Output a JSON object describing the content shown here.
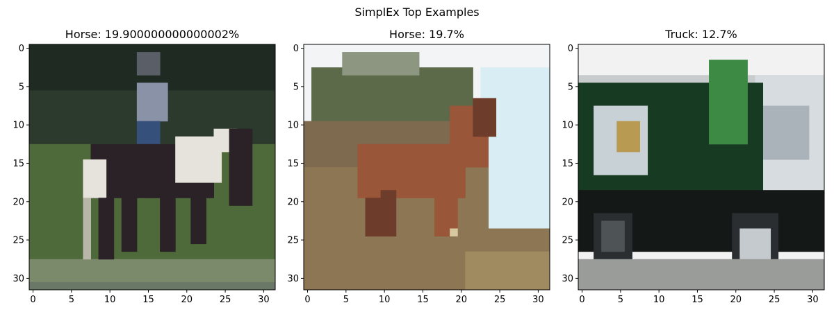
{
  "figure": {
    "suptitle": "SimplEx Top Examples"
  },
  "chart_data": [
    {
      "type": "image",
      "title": "Horse: 19.900000000000002%",
      "xlim": [
        -0.5,
        31.5
      ],
      "ylim": [
        31.5,
        -0.5
      ],
      "xticks": [
        0,
        5,
        10,
        15,
        20,
        25,
        30
      ],
      "yticks": [
        0,
        5,
        10,
        15,
        20,
        25,
        30
      ],
      "colors": {
        "sky": "#1e2a22",
        "background": "#2b3a2c",
        "ground": "#4f6a3a",
        "ground_band": "#7a8a6a",
        "horse": "#2a2226",
        "horse_patch": "#e6e2dc",
        "rider": "#8a92a8",
        "rider_pants": "#35507a",
        "bottom_band": "#6a7868"
      }
    },
    {
      "type": "image",
      "title": "Horse: 19.7%",
      "xlim": [
        -0.5,
        31.5
      ],
      "ylim": [
        31.5,
        -0.5
      ],
      "xticks": [
        0,
        5,
        10,
        15,
        20,
        25,
        30
      ],
      "yticks": [
        0,
        5,
        10,
        15,
        20,
        25,
        30
      ],
      "colors": {
        "sky": "#f2f4f6",
        "water": "#d8eef4",
        "trees": "#5c6a4a",
        "hill": "#7e6a4e",
        "ground": "#8c7654",
        "horse": "#9a5638",
        "horse_dark": "#6e3c2a"
      }
    },
    {
      "type": "image",
      "title": "Truck: 12.7%",
      "xlim": [
        -0.5,
        31.5
      ],
      "ylim": [
        31.5,
        -0.5
      ],
      "xticks": [
        0,
        5,
        10,
        15,
        20,
        25,
        30
      ],
      "yticks": [
        0,
        5,
        10,
        15,
        20,
        25,
        30
      ],
      "colors": {
        "sky": "#f2f2f2",
        "body": "#173a22",
        "body_light": "#3c8a44",
        "sign": "#c8d2d6",
        "sign_logo": "#b89a52",
        "building": "#d6dce0",
        "shadow": "#141816",
        "wheel": "#2a2e30",
        "hubcap": "#c4cace",
        "road": "#9a9c9a"
      }
    }
  ]
}
